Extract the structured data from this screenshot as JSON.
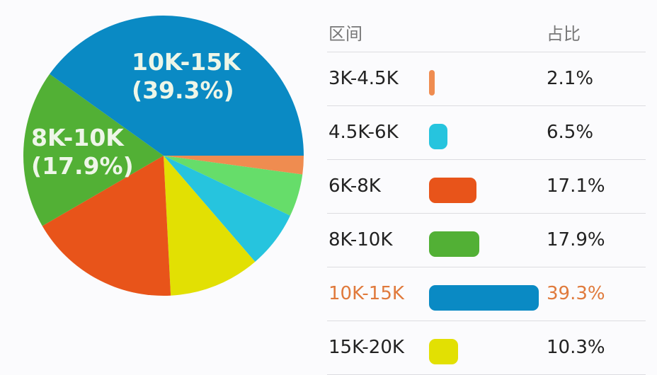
{
  "table": {
    "header": {
      "range": "区间",
      "share": "占比"
    },
    "rows": [
      {
        "range": "3K-4.5K",
        "share": "2.1%",
        "color": "#ef8c50",
        "value": 2.1,
        "highlight": false
      },
      {
        "range": "4.5K-6K",
        "share": "6.5%",
        "color": "#26c4de",
        "value": 6.5,
        "highlight": false
      },
      {
        "range": "6K-8K",
        "share": "17.1%",
        "color": "#e8541a",
        "value": 17.1,
        "highlight": false
      },
      {
        "range": "8K-10K",
        "share": "17.9%",
        "color": "#52b035",
        "value": 17.9,
        "highlight": false
      },
      {
        "range": "10K-15K",
        "share": "39.3%",
        "color": "#0a8ac4",
        "value": 39.3,
        "highlight": true
      },
      {
        "range": "15K-20K",
        "share": "10.3%",
        "color": "#e2e003",
        "value": 10.3,
        "highlight": false
      }
    ]
  },
  "pie_labels": [
    {
      "name": "10K-15K",
      "pct": "(39.3%)"
    },
    {
      "name": "8K-10K",
      "pct": "(17.9%)"
    }
  ],
  "chart_data": {
    "type": "pie",
    "title": "",
    "categories": [
      "3K-4.5K",
      "unlabeled",
      "4.5K-6K",
      "15K-20K",
      "6K-8K",
      "8K-10K",
      "10K-15K"
    ],
    "values": [
      2.1,
      4.8,
      6.5,
      10.3,
      17.1,
      17.9,
      39.3
    ],
    "colors": [
      "#ef8c50",
      "#66dd6a",
      "#26c4de",
      "#e2e003",
      "#e8541a",
      "#52b035",
      "#0a8ac4"
    ],
    "start_angle_deg": 0,
    "direction": "clockwise",
    "legend": "table at right",
    "table_columns": [
      "区间",
      "占比"
    ]
  }
}
